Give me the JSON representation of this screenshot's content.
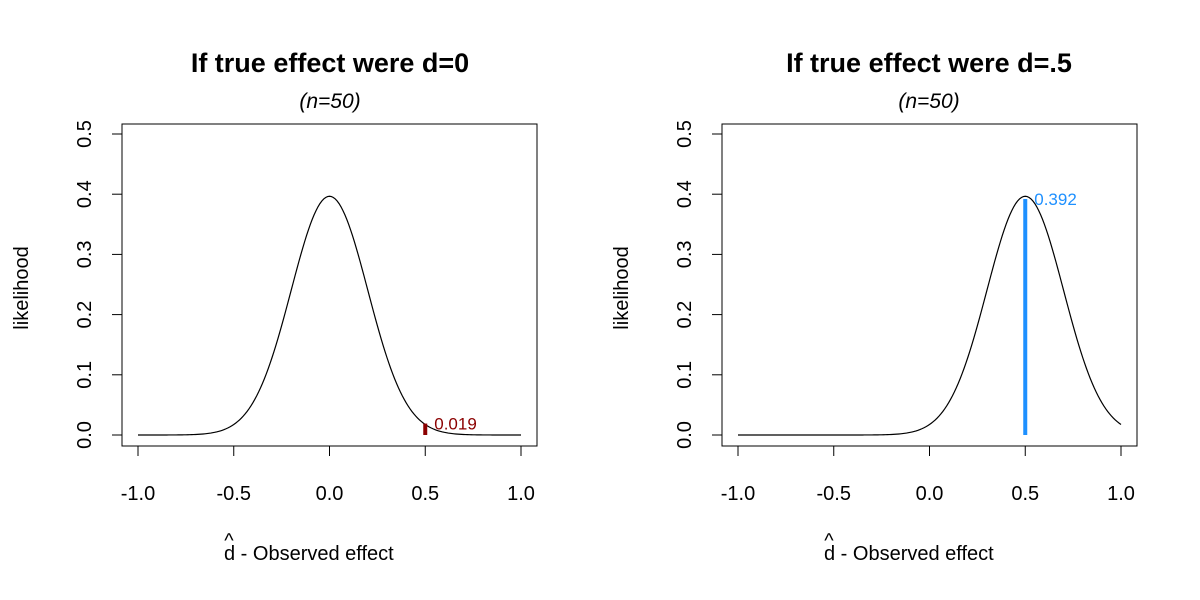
{
  "chart_data": [
    {
      "type": "line",
      "title": "If true effect were d=0",
      "subtitle": "(n=50)",
      "xlabel_hat": "^",
      "xlabel": "d - Observed effect",
      "ylabel": "likelihood",
      "xlim": [
        -1.0,
        1.0
      ],
      "ylim": [
        0.0,
        0.5
      ],
      "x_ticks": [
        "-1.0",
        "-0.5",
        "0.0",
        "0.5",
        "1.0"
      ],
      "y_ticks": [
        "0.0",
        "0.1",
        "0.2",
        "0.3",
        "0.4",
        "0.5"
      ],
      "grid": false,
      "curve": {
        "mean": 0.0,
        "sd": 1.0,
        "x_range": [
          -1.0,
          1.0
        ]
      },
      "marker": {
        "x": 0.5,
        "y": 0.019,
        "label": "0.019",
        "color": "#8B0000"
      }
    },
    {
      "type": "line",
      "title": "If true effect were d=.5",
      "subtitle": "(n=50)",
      "xlabel_hat": "^",
      "xlabel": "d - Observed effect",
      "ylabel": "likelihood",
      "xlim": [
        -1.0,
        1.0
      ],
      "ylim": [
        0.0,
        0.5
      ],
      "x_ticks": [
        "-1.0",
        "-0.5",
        "0.0",
        "0.5",
        "1.0"
      ],
      "y_ticks": [
        "0.0",
        "0.1",
        "0.2",
        "0.3",
        "0.4",
        "0.5"
      ],
      "grid": false,
      "curve": {
        "mean": 0.5,
        "sd": 1.0,
        "x_range": [
          -1.0,
          1.0
        ]
      },
      "marker": {
        "x": 0.5,
        "y": 0.392,
        "label": "0.392",
        "color": "#1E90FF"
      }
    }
  ]
}
